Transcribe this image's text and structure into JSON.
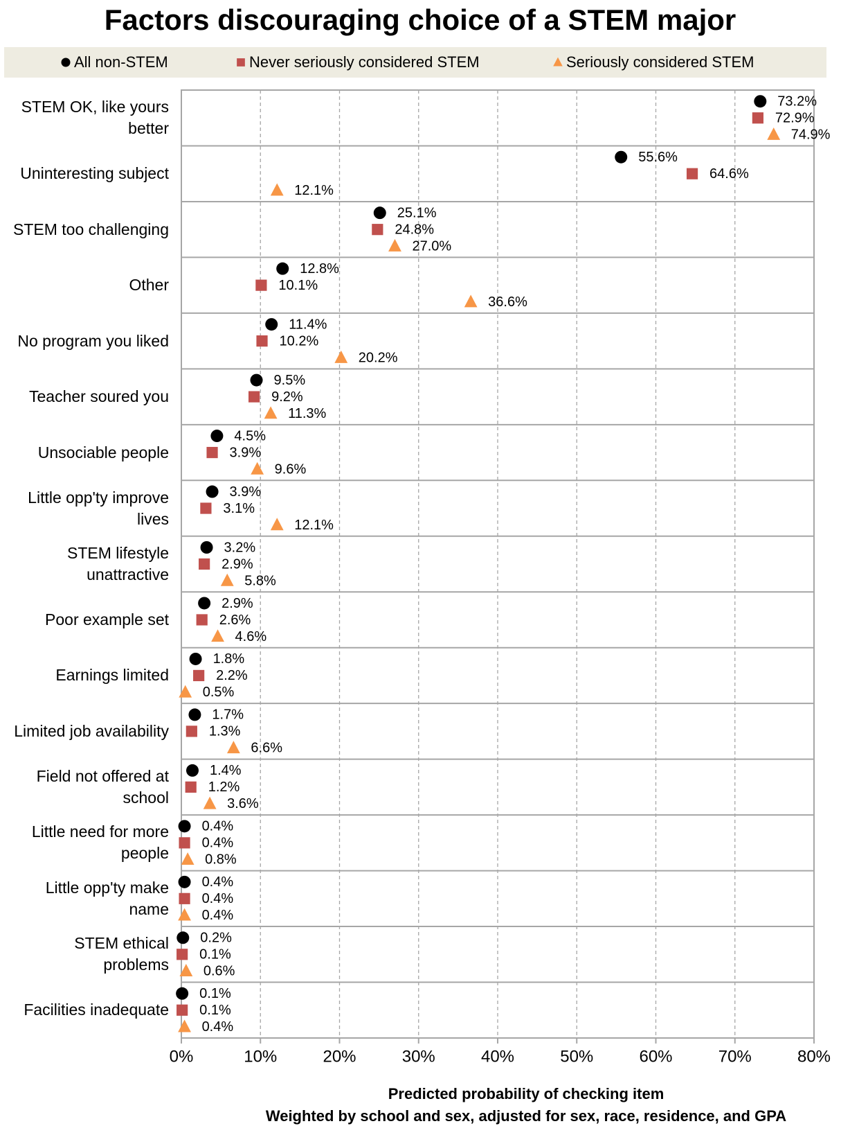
{
  "chart_data": {
    "type": "dot",
    "title": "Factors discouraging choice of a STEM major",
    "xlabel": "Predicted probability of checking item",
    "subtitle": "Weighted by school and sex, adjusted for sex, race, residence, and GPA",
    "categories": [
      "STEM OK, like yours better",
      "Uninteresting subject",
      "STEM too challenging",
      "Other",
      "No program you liked",
      "Teacher soured you",
      "Unsociable people",
      "Little opp'ty improve lives",
      "STEM lifestyle unattractive",
      "Poor example set",
      "Earnings limited",
      "Limited job availability",
      "Field not offered at school",
      "Little need for more people",
      "Little opp'ty make name",
      "STEM ethical problems",
      "Facilities inadequate"
    ],
    "series": [
      {
        "name": "All non-STEM",
        "color": "#000000",
        "marker": "circle",
        "values": [
          73.2,
          55.6,
          25.1,
          12.8,
          11.4,
          9.5,
          4.5,
          3.9,
          3.2,
          2.9,
          1.8,
          1.7,
          1.4,
          0.4,
          0.4,
          0.2,
          0.1
        ],
        "value_labels": [
          "73.2%",
          "55.6%",
          "25.1%",
          "12.8%",
          "11.4%",
          "9.5%",
          "4.5%",
          "3.9%",
          "3.2%",
          "2.9%",
          "1.8%",
          "1.7%",
          "1.4%",
          "0.4%",
          "0.4%",
          "0.2%",
          "0.1%"
        ]
      },
      {
        "name": "Never seriously considered STEM",
        "color": "#c0504d",
        "marker": "square",
        "values": [
          72.9,
          64.6,
          24.8,
          10.1,
          10.2,
          9.2,
          3.9,
          3.1,
          2.9,
          2.6,
          2.2,
          1.3,
          1.2,
          0.4,
          0.4,
          0.1,
          0.1
        ],
        "value_labels": [
          "72.9%",
          "64.6%",
          "24.8%",
          "10.1%",
          "10.2%",
          "9.2%",
          "3.9%",
          "3.1%",
          "2.9%",
          "2.6%",
          "2.2%",
          "1.3%",
          "1.2%",
          "0.4%",
          "0.4%",
          "0.1%",
          "0.1%"
        ]
      },
      {
        "name": "Seriously considered STEM",
        "color": "#f79646",
        "marker": "triangle",
        "values": [
          74.9,
          12.1,
          27.0,
          36.6,
          20.2,
          11.3,
          9.6,
          12.1,
          5.8,
          4.6,
          0.5,
          6.6,
          3.6,
          0.8,
          0.4,
          0.6,
          0.4
        ],
        "value_labels": [
          "74.9%",
          "12.1%",
          "27.0%",
          "36.6%",
          "20.2%",
          "11.3%",
          "9.6%",
          "12.1%",
          "5.8%",
          "4.6%",
          "0.5%",
          "6.6%",
          "3.6%",
          "0.8%",
          "0.4%",
          "0.6%",
          "0.4%"
        ]
      }
    ],
    "xlim": [
      0,
      80
    ],
    "xticks": [
      {
        "value": 0,
        "label": "0%"
      },
      {
        "value": 10,
        "label": "10%"
      },
      {
        "value": 20,
        "label": "20%"
      },
      {
        "value": 30,
        "label": "30%"
      },
      {
        "value": 40,
        "label": "40%"
      },
      {
        "value": 50,
        "label": "50%"
      },
      {
        "value": 60,
        "label": "60%"
      },
      {
        "value": 70,
        "label": "70%"
      },
      {
        "value": 80,
        "label": "80%"
      }
    ],
    "grid": true,
    "legend": "top"
  }
}
